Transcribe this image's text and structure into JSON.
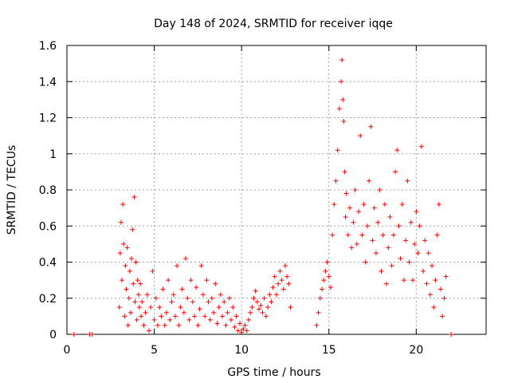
{
  "chart_data": {
    "type": "scatter",
    "title": "Day 148 of 2024, SRMTID for receiver iqqe",
    "xlabel": "GPS time / hours",
    "ylabel": "SRMTID / TECUs",
    "xlim": [
      0,
      24
    ],
    "ylim": [
      0,
      1.6
    ],
    "xticks": [
      0,
      5,
      10,
      15,
      20
    ],
    "xtick_labels": [
      "0",
      "5",
      "10",
      "15",
      "20"
    ],
    "yticks": [
      0,
      0.2,
      0.4,
      0.6,
      0.8,
      1.0,
      1.2,
      1.4,
      1.6
    ],
    "ytick_labels": [
      "0",
      "0.2",
      "0.4",
      "0.6",
      "0.8",
      "1",
      "1.2",
      "1.4",
      "1.6"
    ],
    "grid": true,
    "marker": "+",
    "color": "#ff0000",
    "series": [
      {
        "name": "SRMTID",
        "x": [
          0.4,
          1.3,
          1.45,
          3.0,
          3.05,
          3.1,
          3.15,
          3.2,
          3.25,
          3.3,
          3.35,
          3.4,
          3.45,
          3.5,
          3.55,
          3.6,
          3.65,
          3.7,
          3.75,
          3.8,
          3.85,
          3.9,
          3.95,
          4.0,
          4.05,
          4.1,
          4.15,
          4.2,
          4.25,
          4.3,
          4.4,
          4.5,
          4.6,
          4.7,
          4.8,
          4.9,
          5.0,
          5.1,
          5.2,
          5.3,
          5.4,
          5.5,
          5.6,
          5.7,
          5.8,
          5.9,
          6.0,
          6.1,
          6.2,
          6.3,
          6.4,
          6.5,
          6.6,
          6.7,
          6.8,
          6.9,
          7.0,
          7.1,
          7.2,
          7.3,
          7.4,
          7.5,
          7.6,
          7.7,
          7.8,
          7.9,
          8.0,
          8.1,
          8.2,
          8.3,
          8.4,
          8.5,
          8.6,
          8.7,
          8.8,
          8.9,
          9.0,
          9.1,
          9.2,
          9.3,
          9.4,
          9.5,
          9.6,
          9.7,
          9.8,
          9.9,
          10.0,
          10.1,
          10.2,
          10.3,
          10.4,
          10.5,
          10.6,
          10.7,
          10.8,
          10.9,
          11.0,
          11.1,
          11.2,
          11.3,
          11.4,
          11.5,
          11.6,
          11.7,
          11.8,
          11.9,
          12.0,
          12.1,
          12.2,
          12.3,
          12.4,
          12.5,
          12.6,
          12.7,
          12.8,
          14.3,
          14.4,
          14.5,
          14.6,
          14.7,
          14.8,
          14.9,
          15.0,
          15.1,
          15.2,
          15.3,
          15.4,
          15.5,
          15.6,
          15.7,
          15.75,
          15.8,
          15.85,
          15.9,
          15.95,
          16.0,
          16.1,
          16.2,
          16.3,
          16.4,
          16.5,
          16.6,
          16.7,
          16.8,
          16.9,
          17.0,
          17.1,
          17.2,
          17.3,
          17.4,
          17.5,
          17.6,
          17.7,
          17.8,
          17.9,
          18.0,
          18.1,
          18.2,
          18.3,
          18.4,
          18.5,
          18.6,
          18.7,
          18.8,
          18.9,
          19.0,
          19.1,
          19.2,
          19.3,
          19.4,
          19.5,
          19.6,
          19.7,
          19.8,
          19.9,
          20.0,
          20.1,
          20.2,
          20.3,
          20.4,
          20.5,
          20.6,
          20.7,
          20.8,
          20.9,
          21.0,
          21.1,
          21.2,
          21.3,
          21.4,
          21.5,
          21.6,
          21.7,
          22.0
        ],
        "y": [
          0.0,
          0.0,
          0.0,
          0.15,
          0.45,
          0.62,
          0.3,
          0.72,
          0.5,
          0.1,
          0.38,
          0.25,
          0.48,
          0.05,
          0.2,
          0.35,
          0.12,
          0.42,
          0.58,
          0.28,
          0.76,
          0.18,
          0.4,
          0.08,
          0.3,
          0.22,
          0.15,
          0.28,
          0.1,
          0.18,
          0.05,
          0.12,
          0.22,
          0.02,
          0.15,
          0.35,
          0.08,
          0.2,
          0.05,
          0.15,
          0.1,
          0.25,
          0.05,
          0.12,
          0.3,
          0.08,
          0.18,
          0.22,
          0.1,
          0.38,
          0.05,
          0.15,
          0.25,
          0.12,
          0.42,
          0.2,
          0.08,
          0.3,
          0.18,
          0.1,
          0.26,
          0.05,
          0.14,
          0.38,
          0.22,
          0.1,
          0.3,
          0.18,
          0.08,
          0.2,
          0.12,
          0.28,
          0.06,
          0.15,
          0.22,
          0.1,
          0.18,
          0.05,
          0.12,
          0.2,
          0.08,
          0.15,
          0.04,
          0.1,
          0.02,
          0.06,
          0.01,
          0.03,
          0.05,
          0.02,
          0.08,
          0.12,
          0.15,
          0.2,
          0.24,
          0.18,
          0.14,
          0.16,
          0.12,
          0.2,
          0.1,
          0.15,
          0.22,
          0.18,
          0.26,
          0.32,
          0.22,
          0.28,
          0.35,
          0.3,
          0.25,
          0.38,
          0.32,
          0.28,
          0.15,
          0.05,
          0.12,
          0.2,
          0.25,
          0.3,
          0.35,
          0.4,
          0.32,
          0.26,
          0.55,
          0.72,
          0.85,
          1.02,
          1.25,
          1.4,
          1.52,
          1.3,
          1.18,
          0.9,
          0.65,
          0.78,
          0.55,
          0.7,
          0.48,
          0.62,
          0.8,
          0.5,
          0.68,
          1.1,
          0.55,
          0.72,
          0.4,
          0.6,
          0.85,
          1.15,
          0.52,
          0.7,
          0.45,
          0.62,
          0.8,
          0.35,
          0.55,
          0.72,
          0.28,
          0.48,
          0.65,
          0.38,
          0.55,
          0.9,
          1.02,
          0.6,
          0.42,
          0.72,
          0.3,
          0.52,
          0.85,
          0.4,
          0.62,
          0.3,
          0.5,
          0.68,
          0.45,
          0.6,
          1.04,
          0.35,
          0.52,
          0.28,
          0.45,
          0.22,
          0.38,
          0.15,
          0.3,
          0.55,
          0.72,
          0.25,
          0.1,
          0.2,
          0.32,
          0.0
        ]
      }
    ]
  }
}
